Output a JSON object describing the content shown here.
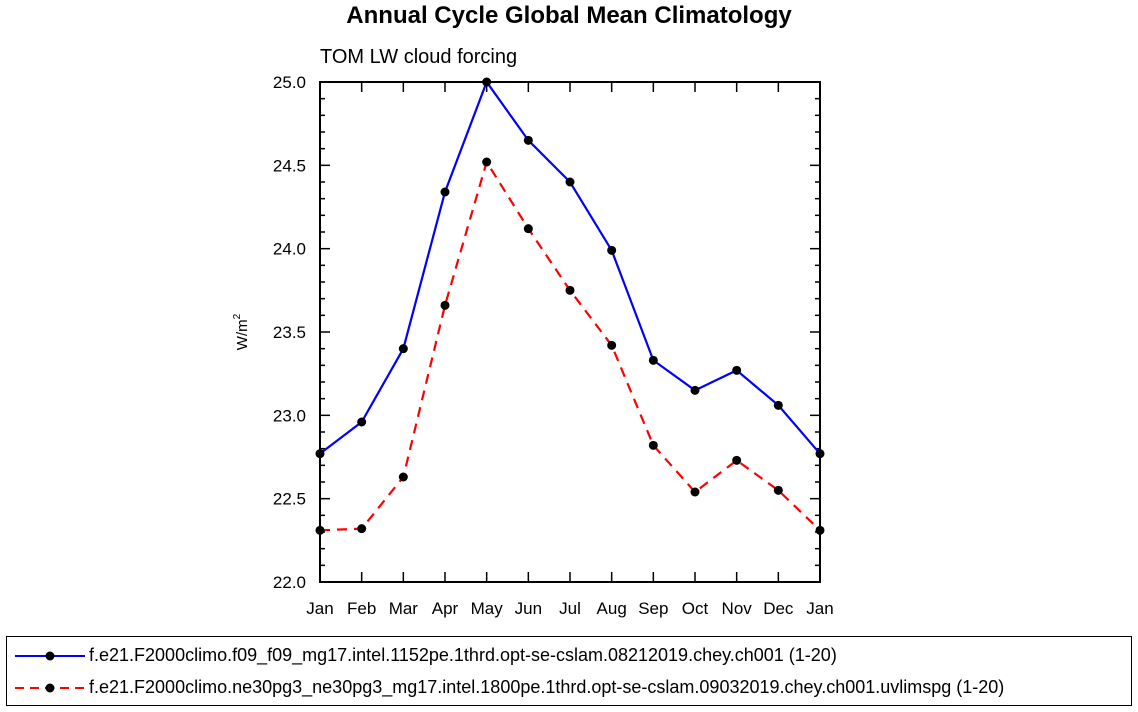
{
  "chart_data": {
    "type": "line",
    "title": "Annual Cycle Global Mean Climatology",
    "subtitle": "TOM LW cloud forcing",
    "ylabel_base": "W/m",
    "ylabel_sup": "2",
    "xlabel": "",
    "categories": [
      "Jan",
      "Feb",
      "Mar",
      "Apr",
      "May",
      "Jun",
      "Jul",
      "Aug",
      "Sep",
      "Oct",
      "Nov",
      "Dec",
      "Jan"
    ],
    "ylim": [
      22.0,
      25.0
    ],
    "yticks": [
      "22.0",
      "22.5",
      "23.0",
      "23.5",
      "24.0",
      "24.5",
      "25.0"
    ],
    "series": [
      {
        "name": "f.e21.F2000climo.f09_f09_mg17.intel.1152pe.1thrd.opt-se-cslam.08212019.chey.ch001 (1-20)",
        "color": "#0000ff",
        "dash": "solid",
        "values": [
          22.77,
          22.96,
          23.4,
          24.34,
          25.0,
          24.65,
          24.4,
          23.99,
          23.33,
          23.15,
          23.27,
          23.06,
          22.77
        ]
      },
      {
        "name": "f.e21.F2000climo.ne30pg3_ne30pg3_mg17.intel.1800pe.1thrd.opt-se-cslam.09032019.chey.ch001.uvlimspg (1-20)",
        "color": "#ff0000",
        "dash": "dashed",
        "values": [
          22.31,
          22.32,
          22.63,
          23.66,
          24.52,
          24.12,
          23.75,
          23.42,
          22.82,
          22.54,
          22.73,
          22.55,
          22.31
        ]
      }
    ]
  }
}
